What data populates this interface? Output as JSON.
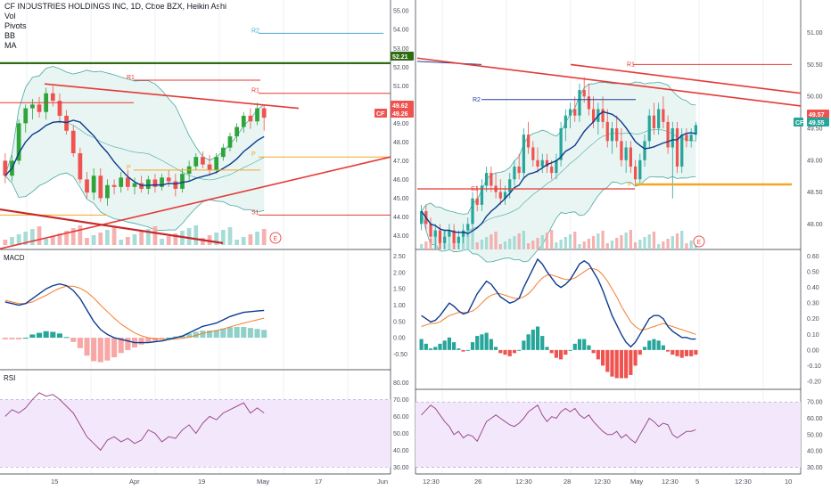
{
  "header": {
    "symbol_line": "CF INDUSTRIES HOLDINGS INC, 1D, Cboe BZX, Heikin Ashi",
    "indicators": [
      "Vol",
      "Pivots",
      "BB",
      "MA"
    ]
  },
  "pane_labels": {
    "macd": "MACD",
    "rsi": "RSI"
  },
  "badges": {
    "left_price_green": "52.21",
    "left_price_red": "49.62",
    "left_cf": "CF",
    "left_cf_value": "49.26",
    "right_price_red": "49.57",
    "right_cf": "CF",
    "right_cf_value": "49.55",
    "earnings": "E"
  },
  "colors": {
    "up": "#26a69a",
    "up_strong": "#2ea43a",
    "down": "#ef5350",
    "ma_blue": "#0d3b8e",
    "bb": "#4aa8a0",
    "bb_fill": "#e8f5f3",
    "trend_red": "#e53935",
    "pivot_orange": "#f5a623",
    "rsi_line": "#9c4a8e",
    "rsi_band": "#f3e8fb",
    "macd_signal": "#f57c2b",
    "sup_green": "#2e6b12",
    "grid": "#eef0f3"
  },
  "chart_data": [
    {
      "type": "candlestick",
      "title": "CF INDUSTRIES HOLDINGS INC, 1D, Cboe BZX, Heikin Ashi",
      "pane": "left-price",
      "y_ticks": [
        "55.00",
        "54.00",
        "53.00",
        "52.00",
        "51.00",
        "50.00",
        "49.00",
        "48.00",
        "47.00",
        "46.00",
        "45.00",
        "44.00",
        "43.00"
      ],
      "x_ticks": [
        "15",
        "Apr",
        "19",
        "May",
        "17",
        "Jun"
      ],
      "ylim": [
        42.5,
        55.2
      ],
      "pivot_labels": [
        "R2",
        "R1",
        "R1",
        "P",
        "P",
        "S1",
        "S1"
      ],
      "candles": [
        [
          47.0,
          47.4,
          45.8,
          46.2
        ],
        [
          46.2,
          47.3,
          45.9,
          47.0
        ],
        [
          47.0,
          49.2,
          46.8,
          49.0
        ],
        [
          49.0,
          50.0,
          48.5,
          49.8
        ],
        [
          49.8,
          50.3,
          49.2,
          50.0
        ],
        [
          50.0,
          50.4,
          49.3,
          49.6
        ],
        [
          49.6,
          50.9,
          49.2,
          50.6
        ],
        [
          50.6,
          51.0,
          49.9,
          50.2
        ],
        [
          50.2,
          50.6,
          49.0,
          49.4
        ],
        [
          49.4,
          49.7,
          48.4,
          48.6
        ],
        [
          48.6,
          48.9,
          47.2,
          47.4
        ],
        [
          47.4,
          47.7,
          45.8,
          46.0
        ],
        [
          46.0,
          46.4,
          45.0,
          45.3
        ],
        [
          45.3,
          46.6,
          44.9,
          46.2
        ],
        [
          46.2,
          46.6,
          44.8,
          45.0
        ],
        [
          45.0,
          46.0,
          44.6,
          45.7
        ],
        [
          45.7,
          46.0,
          45.2,
          45.6
        ],
        [
          45.6,
          46.4,
          45.3,
          46.1
        ],
        [
          46.1,
          46.5,
          45.4,
          45.6
        ],
        [
          45.6,
          46.1,
          45.2,
          45.8
        ],
        [
          45.8,
          46.2,
          45.3,
          45.5
        ],
        [
          45.5,
          46.2,
          45.2,
          46.0
        ],
        [
          46.0,
          46.3,
          45.3,
          45.6
        ],
        [
          45.6,
          46.3,
          45.4,
          46.1
        ],
        [
          46.1,
          46.5,
          45.6,
          45.9
        ],
        [
          45.9,
          46.3,
          45.1,
          45.5
        ],
        [
          45.5,
          46.6,
          45.3,
          46.3
        ],
        [
          46.3,
          47.0,
          45.9,
          46.7
        ],
        [
          46.7,
          47.4,
          46.5,
          47.2
        ],
        [
          47.2,
          47.5,
          46.6,
          46.8
        ],
        [
          46.8,
          47.3,
          46.2,
          46.5
        ],
        [
          46.5,
          47.4,
          46.3,
          47.2
        ],
        [
          47.2,
          47.9,
          47.0,
          47.7
        ],
        [
          47.7,
          48.5,
          47.5,
          48.3
        ],
        [
          48.3,
          49.0,
          48.0,
          48.8
        ],
        [
          48.8,
          49.6,
          48.5,
          49.4
        ],
        [
          49.4,
          49.8,
          48.7,
          49.1
        ],
        [
          49.1,
          50.1,
          48.9,
          49.8
        ],
        [
          49.8,
          50.0,
          48.6,
          49.3
        ]
      ],
      "pivot_lines": {
        "R2": 53.8,
        "R1_high": 51.3,
        "R1": 50.6,
        "P_high": 47.2,
        "P": 46.5,
        "S1": 44.1
      },
      "support_line": 52.21
    },
    {
      "type": "line",
      "pane": "left-macd",
      "title": "MACD",
      "y_ticks": [
        "2.50",
        "2.00",
        "1.50",
        "1.00",
        "0.50",
        "0.00",
        "-0.50"
      ],
      "ylim": [
        -0.9,
        2.6
      ],
      "series": [
        {
          "values": [
            1.1,
            1.05,
            1.0,
            1.05,
            1.2,
            1.35,
            1.5,
            1.6,
            1.65,
            1.6,
            1.45,
            1.2,
            0.85,
            0.5,
            0.25,
            0.1,
            0.0,
            -0.05,
            -0.1,
            -0.15,
            -0.15,
            -0.15,
            -0.12,
            -0.1,
            -0.05,
            0.0,
            0.05,
            0.15,
            0.25,
            0.35,
            0.4,
            0.45,
            0.55,
            0.65,
            0.72,
            0.78,
            0.8,
            0.82,
            0.84
          ]
        },
        {
          "values": [
            1.15,
            1.1,
            1.05,
            1.05,
            1.1,
            1.2,
            1.3,
            1.42,
            1.52,
            1.58,
            1.58,
            1.52,
            1.4,
            1.22,
            1.0,
            0.8,
            0.6,
            0.42,
            0.28,
            0.15,
            0.06,
            0.0,
            -0.03,
            -0.05,
            -0.05,
            -0.04,
            -0.02,
            0.02,
            0.07,
            0.13,
            0.18,
            0.22,
            0.27,
            0.33,
            0.39,
            0.45,
            0.5,
            0.55,
            0.6
          ]
        }
      ],
      "histogram": [
        -0.05,
        -0.05,
        -0.05,
        0.0,
        0.1,
        0.15,
        0.2,
        0.18,
        0.13,
        0.02,
        -0.13,
        -0.32,
        -0.55,
        -0.72,
        -0.75,
        -0.7,
        -0.6,
        -0.47,
        -0.38,
        -0.3,
        -0.21,
        -0.15,
        -0.09,
        -0.05,
        0.0,
        0.04,
        0.07,
        0.13,
        0.18,
        0.22,
        0.22,
        0.23,
        0.28,
        0.32,
        0.33,
        0.33,
        0.3,
        0.27,
        0.24
      ]
    },
    {
      "type": "line",
      "pane": "left-rsi",
      "title": "RSI",
      "y_ticks": [
        "80.00",
        "70.00",
        "60.00",
        "50.00",
        "40.00",
        "30.00"
      ],
      "ylim": [
        27,
        85
      ],
      "band": [
        30,
        70
      ],
      "values": [
        60,
        64,
        62,
        65,
        70,
        74,
        72,
        73,
        70,
        66,
        62,
        55,
        48,
        44,
        40,
        46,
        48,
        45,
        47,
        44,
        46,
        52,
        50,
        45,
        48,
        47,
        52,
        55,
        50,
        56,
        60,
        58,
        62,
        64,
        66,
        68,
        62,
        65,
        62
      ]
    },
    {
      "type": "candlestick",
      "pane": "right-price",
      "y_ticks": [
        "51.00",
        "50.50",
        "50.00",
        "49.50",
        "49.00",
        "48.50",
        "48.00"
      ],
      "x_ticks": [
        "12:30",
        "26",
        "12:30",
        "28",
        "12:30",
        "May",
        "12:30",
        "5",
        "12:30",
        "10"
      ],
      "ylim": [
        47.6,
        51.4
      ],
      "pivot_labels": [
        "R1",
        "R2",
        "P",
        "S1"
      ],
      "candles": [
        [
          48.0,
          48.3,
          47.9,
          48.2
        ],
        [
          48.2,
          48.3,
          47.9,
          48.0
        ],
        [
          48.0,
          48.1,
          47.7,
          47.8
        ],
        [
          47.8,
          48.0,
          47.6,
          47.9
        ],
        [
          47.9,
          48.0,
          47.6,
          47.7
        ],
        [
          47.7,
          47.9,
          47.6,
          47.8
        ],
        [
          47.8,
          48.0,
          47.7,
          47.9
        ],
        [
          47.9,
          48.0,
          47.6,
          47.7
        ],
        [
          47.7,
          47.9,
          47.6,
          47.8
        ],
        [
          47.8,
          48.0,
          47.7,
          47.9
        ],
        [
          47.9,
          48.1,
          47.8,
          48.0
        ],
        [
          48.0,
          48.5,
          47.9,
          48.4
        ],
        [
          48.4,
          48.6,
          48.2,
          48.3
        ],
        [
          48.3,
          48.7,
          48.2,
          48.6
        ],
        [
          48.6,
          48.9,
          48.5,
          48.8
        ],
        [
          48.8,
          48.9,
          48.5,
          48.6
        ],
        [
          48.6,
          48.8,
          48.4,
          48.5
        ],
        [
          48.5,
          48.7,
          48.3,
          48.4
        ],
        [
          48.4,
          48.6,
          48.3,
          48.5
        ],
        [
          48.5,
          48.8,
          48.4,
          48.7
        ],
        [
          48.7,
          49.0,
          48.6,
          48.9
        ],
        [
          48.9,
          49.1,
          48.7,
          48.8
        ],
        [
          48.8,
          49.5,
          48.7,
          49.4
        ],
        [
          49.4,
          49.6,
          49.1,
          49.2
        ],
        [
          49.2,
          49.3,
          48.9,
          49.0
        ],
        [
          49.0,
          49.2,
          48.8,
          48.9
        ],
        [
          48.9,
          49.1,
          48.8,
          49.0
        ],
        [
          49.0,
          49.1,
          48.8,
          48.9
        ],
        [
          48.9,
          49.0,
          48.7,
          48.8
        ],
        [
          48.8,
          49.1,
          48.7,
          49.0
        ],
        [
          49.0,
          49.6,
          48.9,
          49.5
        ],
        [
          49.5,
          49.8,
          49.3,
          49.7
        ],
        [
          49.7,
          49.9,
          49.5,
          49.8
        ],
        [
          49.8,
          50.0,
          49.6,
          49.7
        ],
        [
          49.7,
          50.2,
          49.6,
          50.1
        ],
        [
          50.1,
          50.3,
          49.9,
          50.0
        ],
        [
          50.0,
          50.2,
          49.7,
          49.8
        ],
        [
          49.8,
          50.0,
          49.5,
          49.6
        ],
        [
          49.6,
          49.9,
          49.4,
          49.8
        ],
        [
          49.8,
          50.0,
          49.5,
          49.6
        ],
        [
          49.6,
          49.8,
          49.2,
          49.3
        ],
        [
          49.3,
          49.6,
          49.1,
          49.5
        ],
        [
          49.5,
          49.7,
          49.2,
          49.3
        ],
        [
          49.3,
          49.5,
          48.9,
          49.0
        ],
        [
          49.0,
          49.3,
          48.8,
          49.2
        ],
        [
          49.2,
          49.3,
          48.8,
          48.9
        ],
        [
          48.9,
          49.0,
          48.6,
          48.7
        ],
        [
          48.7,
          49.1,
          48.6,
          49.0
        ],
        [
          49.0,
          49.4,
          48.9,
          49.3
        ],
        [
          49.3,
          49.8,
          49.2,
          49.7
        ],
        [
          49.7,
          49.9,
          49.4,
          49.5
        ],
        [
          49.5,
          49.9,
          49.4,
          49.8
        ],
        [
          49.8,
          50.0,
          49.5,
          49.6
        ],
        [
          49.6,
          49.7,
          49.1,
          49.2
        ],
        [
          49.2,
          49.6,
          48.4,
          49.5
        ],
        [
          49.5,
          49.6,
          48.8,
          48.9
        ],
        [
          48.9,
          49.5,
          48.8,
          49.4
        ],
        [
          49.4,
          49.5,
          49.2,
          49.3
        ],
        [
          49.3,
          49.5,
          49.2,
          49.4
        ],
        [
          49.4,
          49.6,
          49.3,
          49.55
        ]
      ],
      "pivot_lines": {
        "R1": 50.5,
        "R2": 49.95,
        "P": 48.62,
        "S1": 48.55
      }
    },
    {
      "type": "line",
      "pane": "right-macd",
      "y_ticks": [
        "0.60",
        "0.50",
        "0.40",
        "0.30",
        "0.20",
        "0.10",
        "0.00",
        "-0.10",
        "-0.20"
      ],
      "ylim": [
        -0.24,
        0.62
      ],
      "series": [
        {
          "values": [
            0.22,
            0.2,
            0.18,
            0.19,
            0.22,
            0.26,
            0.3,
            0.28,
            0.25,
            0.23,
            0.24,
            0.3,
            0.36,
            0.4,
            0.44,
            0.42,
            0.38,
            0.34,
            0.32,
            0.3,
            0.31,
            0.33,
            0.4,
            0.46,
            0.52,
            0.58,
            0.55,
            0.5,
            0.46,
            0.42,
            0.4,
            0.42,
            0.45,
            0.5,
            0.55,
            0.57,
            0.55,
            0.5,
            0.45,
            0.38,
            0.3,
            0.22,
            0.16,
            0.1,
            0.05,
            0.02,
            0.05,
            0.1,
            0.15,
            0.2,
            0.22,
            0.22,
            0.2,
            0.15,
            0.12,
            0.1,
            0.08,
            0.08,
            0.07,
            0.07
          ]
        },
        {
          "values": [
            0.15,
            0.16,
            0.17,
            0.17,
            0.18,
            0.2,
            0.22,
            0.23,
            0.24,
            0.24,
            0.24,
            0.25,
            0.27,
            0.3,
            0.33,
            0.35,
            0.36,
            0.36,
            0.35,
            0.34,
            0.33,
            0.33,
            0.34,
            0.36,
            0.39,
            0.43,
            0.46,
            0.48,
            0.48,
            0.47,
            0.46,
            0.45,
            0.45,
            0.46,
            0.48,
            0.5,
            0.52,
            0.52,
            0.51,
            0.48,
            0.44,
            0.39,
            0.34,
            0.28,
            0.23,
            0.18,
            0.15,
            0.13,
            0.13,
            0.14,
            0.15,
            0.16,
            0.17,
            0.16,
            0.15,
            0.14,
            0.13,
            0.12,
            0.11,
            0.1
          ]
        }
      ],
      "histogram": [
        0.07,
        0.04,
        0.01,
        0.02,
        0.04,
        0.06,
        0.08,
        0.05,
        0.01,
        -0.01,
        0.0,
        0.05,
        0.09,
        0.1,
        0.11,
        0.07,
        0.02,
        -0.02,
        -0.03,
        -0.04,
        -0.02,
        0.0,
        0.06,
        0.1,
        0.13,
        0.15,
        0.09,
        0.02,
        -0.02,
        -0.05,
        -0.06,
        -0.03,
        0.0,
        0.04,
        0.07,
        0.07,
        0.03,
        -0.02,
        -0.06,
        -0.1,
        -0.14,
        -0.17,
        -0.18,
        -0.18,
        -0.18,
        -0.16,
        -0.1,
        -0.03,
        0.02,
        0.06,
        0.07,
        0.06,
        0.03,
        -0.01,
        -0.03,
        -0.04,
        -0.05,
        -0.04,
        -0.04,
        -0.03
      ]
    },
    {
      "type": "line",
      "pane": "right-rsi",
      "y_ticks": [
        "70.00",
        "60.00",
        "50.00",
        "40.00",
        "30.00"
      ],
      "ylim": [
        27,
        75
      ],
      "band": [
        30,
        70
      ],
      "values": [
        62,
        65,
        68,
        66,
        62,
        58,
        55,
        50,
        52,
        48,
        50,
        49,
        46,
        52,
        58,
        60,
        62,
        60,
        58,
        56,
        55,
        57,
        60,
        64,
        66,
        68,
        62,
        58,
        61,
        60,
        64,
        66,
        64,
        66,
        62,
        60,
        62,
        58,
        55,
        52,
        50,
        50,
        52,
        48,
        50,
        47,
        45,
        50,
        55,
        60,
        58,
        55,
        57,
        56,
        50,
        48,
        50,
        52,
        52,
        53
      ]
    }
  ]
}
